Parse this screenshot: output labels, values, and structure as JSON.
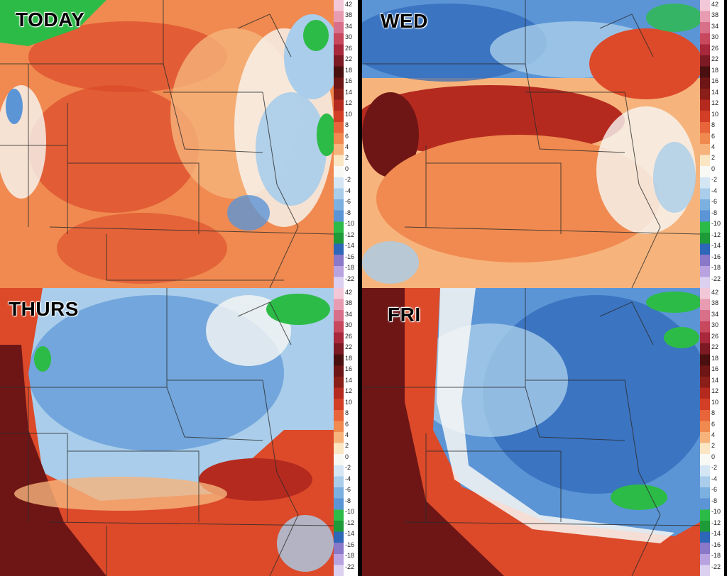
{
  "panels": [
    {
      "id": "today",
      "label": "TODAY",
      "pattern": "warm"
    },
    {
      "id": "wed",
      "label": "WED",
      "pattern": "warm-north-cool"
    },
    {
      "id": "thurs",
      "label": "THURS",
      "pattern": "cool-west-warm"
    },
    {
      "id": "fri",
      "label": "FRI",
      "pattern": "cool-east"
    }
  ],
  "scale_ticks": [
    "42",
    "38",
    "34",
    "30",
    "26",
    "22",
    "18",
    "16",
    "14",
    "12",
    "10",
    "8",
    "6",
    "4",
    "2",
    "0",
    "-2",
    "-4",
    "-6",
    "-8",
    "-10",
    "-12",
    "-14",
    "-16",
    "-18",
    "-22"
  ],
  "colors": {
    "deep_red": "#6e1616",
    "dark_red": "#b52a1f",
    "red": "#dc4a2a",
    "orange": "#f08a50",
    "light_orange": "#f6b47c",
    "pale": "#fbe6c4",
    "white": "#f8f8f4",
    "light_blue": "#a9cdea",
    "blue": "#5b95d6",
    "dark_blue": "#2e66b8",
    "green": "#2dbb48",
    "purple": "#b9a2e0",
    "border": "#2a2a2a"
  }
}
